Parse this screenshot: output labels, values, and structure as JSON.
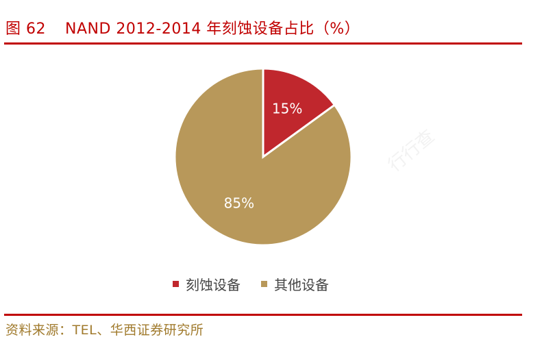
{
  "figure": {
    "number": "图 62",
    "title": "NAND 2012-2014 年刻蚀设备占比（%）"
  },
  "source": "资料来源：TEL、华西证券研究所",
  "watermark": "行行查",
  "chart_data": {
    "type": "pie",
    "categories": [
      "刻蚀设备",
      "其他设备"
    ],
    "values": [
      15,
      85
    ],
    "labels": [
      "15%",
      "85%"
    ],
    "colors": [
      "#c0272d",
      "#b8985a"
    ],
    "start_angle_deg": 0,
    "direction": "clockwise",
    "legend_position": "bottom"
  }
}
